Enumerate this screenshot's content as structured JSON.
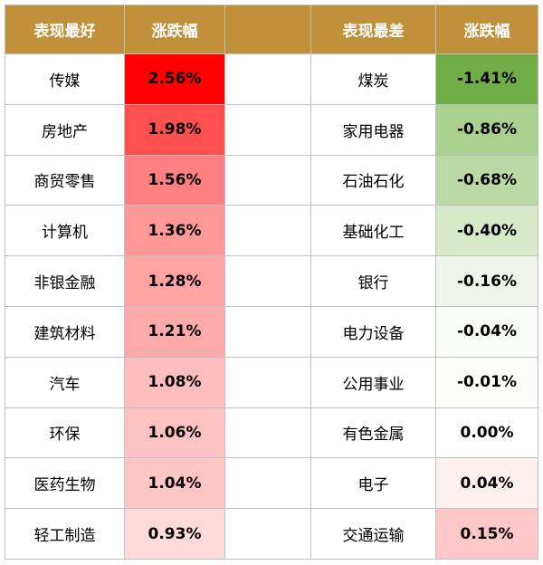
{
  "chart_data": {
    "type": "table",
    "headers": {
      "best_label": "表现最好",
      "best_change": "涨跌幅",
      "worst_label": "表现最差",
      "worst_change": "涨跌幅"
    },
    "best": [
      {
        "name": "传媒",
        "change": "2.56%",
        "value": 2.56,
        "color": "#ff0000"
      },
      {
        "name": "房地产",
        "change": "1.98%",
        "value": 1.98,
        "color": "#ff5050"
      },
      {
        "name": "商贸零售",
        "change": "1.56%",
        "value": 1.56,
        "color": "#ff8080"
      },
      {
        "name": "计算机",
        "change": "1.36%",
        "value": 1.36,
        "color": "#ff9898"
      },
      {
        "name": "非银金融",
        "change": "1.28%",
        "value": 1.28,
        "color": "#ffa3a3"
      },
      {
        "name": "建筑材料",
        "change": "1.21%",
        "value": 1.21,
        "color": "#ffaaaa"
      },
      {
        "name": "汽车",
        "change": "1.08%",
        "value": 1.08,
        "color": "#ffbebe"
      },
      {
        "name": "环保",
        "change": "1.06%",
        "value": 1.06,
        "color": "#ffc2c2"
      },
      {
        "name": "医药生物",
        "change": "1.04%",
        "value": 1.04,
        "color": "#ffc6c6"
      },
      {
        "name": "轻工制造",
        "change": "0.93%",
        "value": 0.93,
        "color": "#ffdada"
      }
    ],
    "worst": [
      {
        "name": "煤炭",
        "change": "-1.41%",
        "value": -1.41,
        "color": "#70ad47"
      },
      {
        "name": "家用电器",
        "change": "-0.86%",
        "value": -0.86,
        "color": "#a9d08e"
      },
      {
        "name": "石油石化",
        "change": "-0.68%",
        "value": -0.68,
        "color": "#b9d9a5"
      },
      {
        "name": "基础化工",
        "change": "-0.40%",
        "value": -0.4,
        "color": "#d6e9c9"
      },
      {
        "name": "银行",
        "change": "-0.16%",
        "value": -0.16,
        "color": "#eef5e8"
      },
      {
        "name": "电力设备",
        "change": "-0.04%",
        "value": -0.04,
        "color": "#fafcf8"
      },
      {
        "name": "公用事业",
        "change": "-0.01%",
        "value": -0.01,
        "color": "#fdfefc"
      },
      {
        "name": "有色金属",
        "change": "0.00%",
        "value": 0.0,
        "color": "#ffffff"
      },
      {
        "name": "电子",
        "change": "0.04%",
        "value": 0.04,
        "color": "#fff0f0"
      },
      {
        "name": "交通运输",
        "change": "0.15%",
        "value": 0.15,
        "color": "#ffc8c8"
      }
    ],
    "header_color": "#c0903a",
    "border_color": "#bfbfbf"
  }
}
